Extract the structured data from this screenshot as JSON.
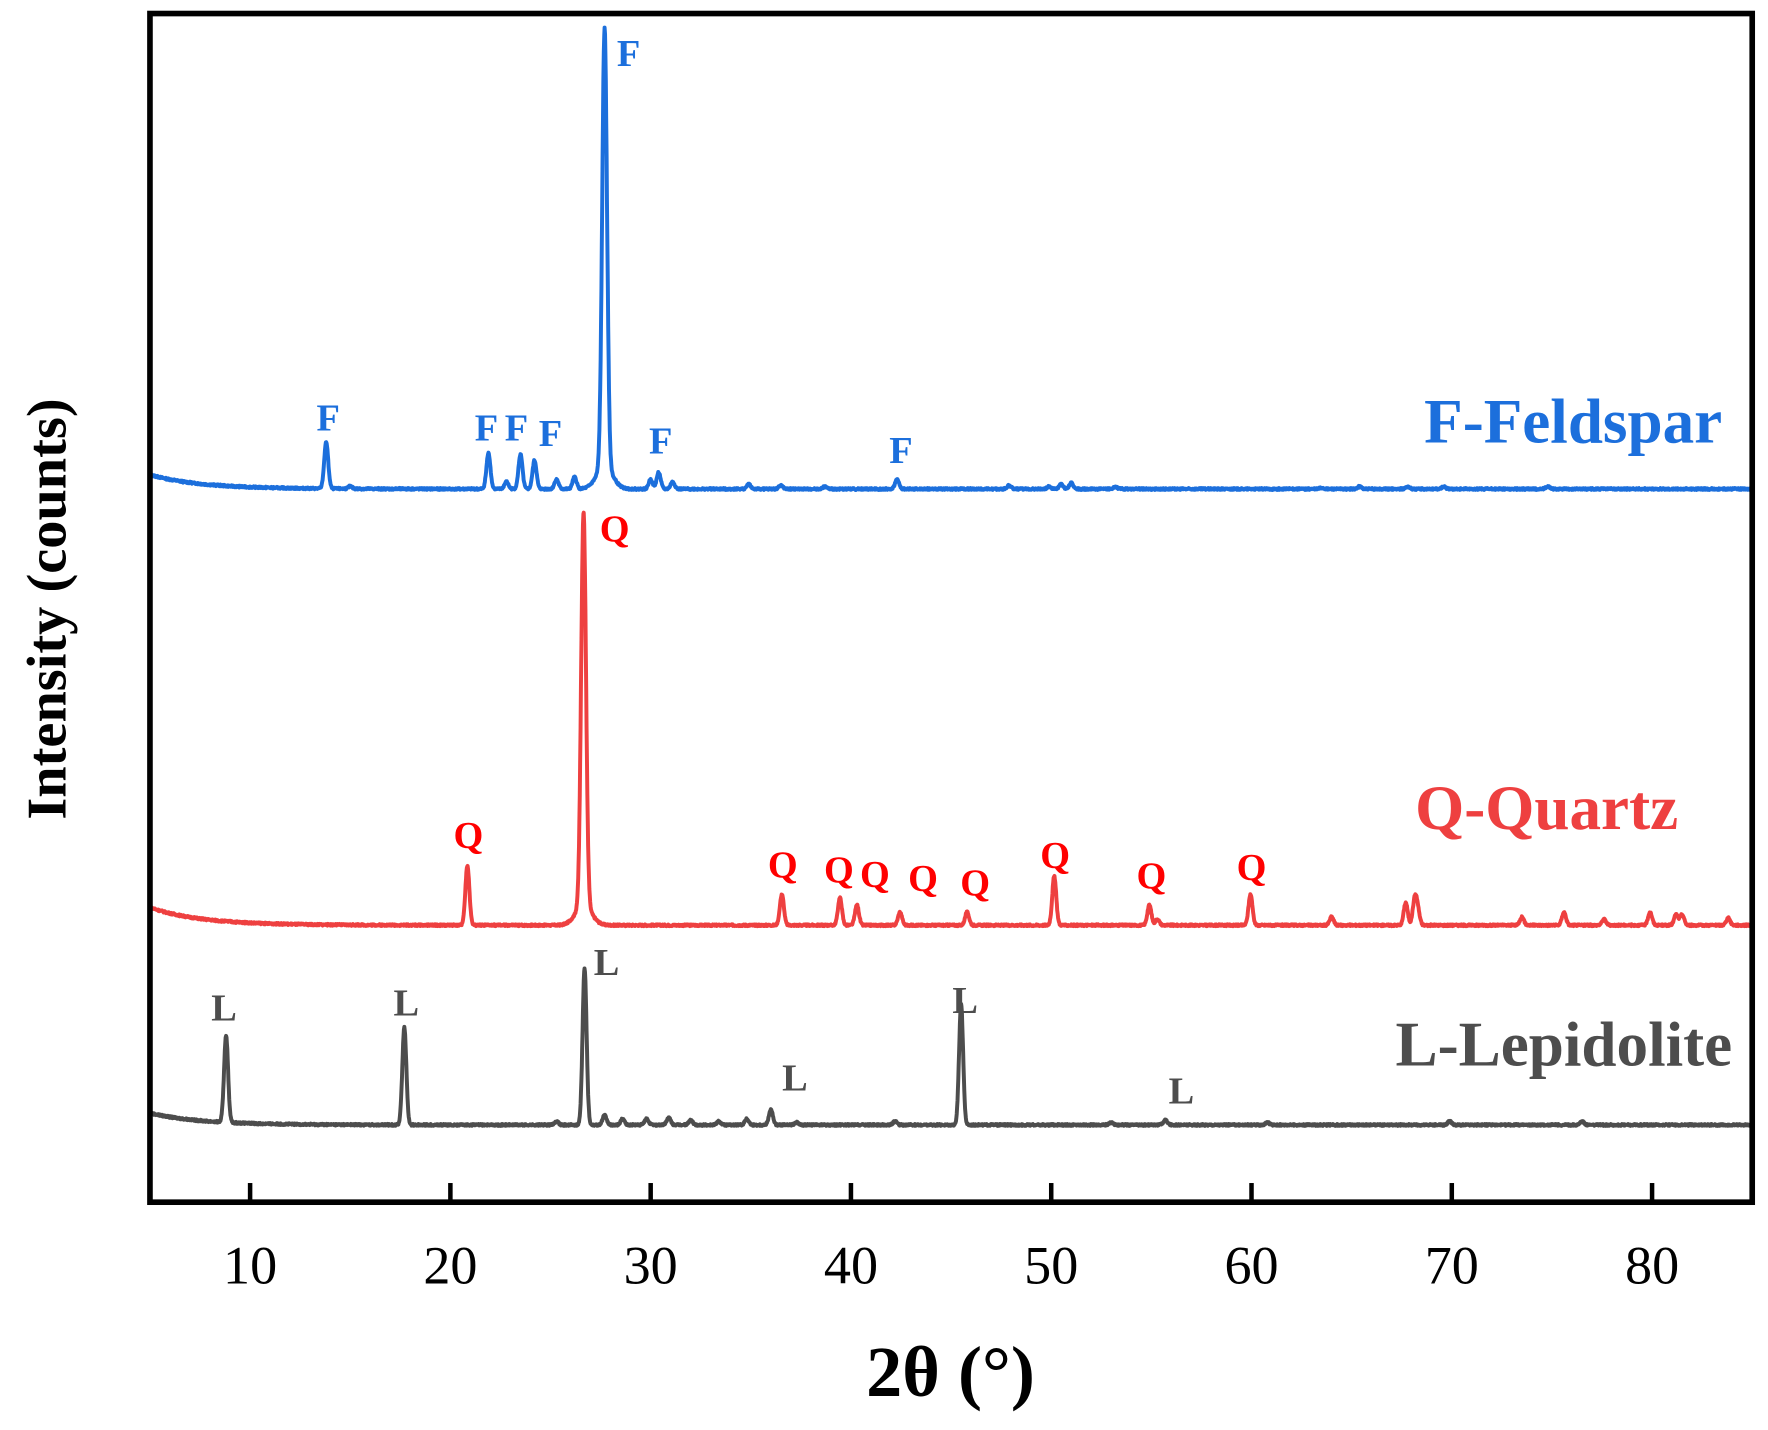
{
  "chart_data": {
    "type": "line",
    "title": "",
    "xlabel": "2θ (°)",
    "ylabel": "Intensity (counts)",
    "xlim": [
      5,
      85
    ],
    "ylim": [
      0,
      1000
    ],
    "xticks": [
      10,
      20,
      30,
      40,
      50,
      60,
      70,
      80
    ],
    "y_ticks_shown": false,
    "grid": false,
    "legend": "inline labels at right of each trace",
    "series": [
      {
        "name": "F-Feldspar",
        "color": "#1c6fdc",
        "baseline": 600,
        "start_rise": 12,
        "peaks": [
          [
            13.8,
            39
          ],
          [
            15.0,
            2
          ],
          [
            21.9,
            30
          ],
          [
            22.8,
            6
          ],
          [
            23.5,
            29
          ],
          [
            24.2,
            24
          ],
          [
            25.3,
            8
          ],
          [
            26.2,
            10
          ],
          [
            27.7,
            369
          ],
          [
            30.0,
            8
          ],
          [
            30.4,
            14
          ],
          [
            31.1,
            6
          ],
          [
            34.9,
            4
          ],
          [
            36.5,
            3
          ],
          [
            38.7,
            2
          ],
          [
            42.3,
            8
          ],
          [
            47.9,
            3
          ],
          [
            49.9,
            2
          ],
          [
            50.5,
            4
          ],
          [
            51.0,
            5
          ],
          [
            53.2,
            2
          ],
          [
            63.5,
            1
          ],
          [
            65.4,
            2
          ],
          [
            67.8,
            2
          ],
          [
            69.6,
            2
          ],
          [
            74.8,
            2
          ]
        ],
        "labels": [
          {
            "text": "F",
            "x": 28.9,
            "y": 956
          },
          {
            "text": "F",
            "x": 13.9,
            "y": 649
          },
          {
            "text": "F",
            "x": 21.8,
            "y": 641
          },
          {
            "text": "F",
            "x": 23.3,
            "y": 641
          },
          {
            "text": "F",
            "x": 25.0,
            "y": 636
          },
          {
            "text": "F",
            "x": 30.5,
            "y": 630
          },
          {
            "text": "F",
            "x": 42.5,
            "y": 622
          }
        ]
      },
      {
        "name": "Q-Quartz",
        "color": "#ee4040",
        "label_color": "#ff0000",
        "baseline": 233,
        "start_rise": 15,
        "peaks": [
          [
            20.85,
            50
          ],
          [
            26.65,
            331
          ],
          [
            36.55,
            26
          ],
          [
            39.45,
            23
          ],
          [
            40.3,
            17
          ],
          [
            42.45,
            11
          ],
          [
            45.8,
            11
          ],
          [
            50.15,
            41
          ],
          [
            54.9,
            17
          ],
          [
            55.3,
            5
          ],
          [
            59.95,
            26
          ],
          [
            64.0,
            7
          ],
          [
            67.7,
            19
          ],
          [
            68.15,
            21
          ],
          [
            68.3,
            12
          ],
          [
            73.5,
            7
          ],
          [
            75.6,
            11
          ],
          [
            77.6,
            5
          ],
          [
            79.9,
            11
          ],
          [
            81.2,
            9
          ],
          [
            81.5,
            9
          ],
          [
            83.8,
            6
          ]
        ],
        "labels": [
          {
            "text": "Q",
            "x": 28.2,
            "y": 556
          },
          {
            "text": "Q",
            "x": 20.9,
            "y": 298
          },
          {
            "text": "Q",
            "x": 36.6,
            "y": 273
          },
          {
            "text": "Q",
            "x": 39.4,
            "y": 269
          },
          {
            "text": "Q",
            "x": 41.2,
            "y": 265
          },
          {
            "text": "Q",
            "x": 43.6,
            "y": 262
          },
          {
            "text": "Q",
            "x": 46.2,
            "y": 258
          },
          {
            "text": "Q",
            "x": 50.2,
            "y": 281
          },
          {
            "text": "Q",
            "x": 55.0,
            "y": 264
          },
          {
            "text": "Q",
            "x": 60.0,
            "y": 271
          }
        ]
      },
      {
        "name": "L-Lepidolite",
        "color": "#4d4d4d",
        "baseline": 65,
        "start_rise": 10,
        "peaks": [
          [
            8.8,
            73
          ],
          [
            17.7,
            82
          ],
          [
            25.3,
            3
          ],
          [
            26.7,
            132
          ],
          [
            27.7,
            8
          ],
          [
            28.6,
            5
          ],
          [
            29.8,
            5
          ],
          [
            30.9,
            6
          ],
          [
            32.0,
            4
          ],
          [
            33.4,
            3
          ],
          [
            34.8,
            5
          ],
          [
            36.0,
            13
          ],
          [
            37.3,
            2
          ],
          [
            42.2,
            3
          ],
          [
            45.5,
            102
          ],
          [
            53.0,
            2
          ],
          [
            55.7,
            4
          ],
          [
            60.8,
            2
          ],
          [
            69.9,
            3
          ],
          [
            76.5,
            3
          ]
        ],
        "labels": [
          {
            "text": "L",
            "x": 8.7,
            "y": 153
          },
          {
            "text": "L",
            "x": 17.8,
            "y": 157
          },
          {
            "text": "L",
            "x": 27.8,
            "y": 191
          },
          {
            "text": "L",
            "x": 37.2,
            "y": 94
          },
          {
            "text": "L",
            "x": 45.7,
            "y": 159
          },
          {
            "text": "L",
            "x": 56.5,
            "y": 83
          }
        ]
      }
    ],
    "series_label_positions": [
      {
        "x": 83.5,
        "y": 639
      },
      {
        "x": 81.3,
        "y": 314
      },
      {
        "x": 84.0,
        "y": 115
      }
    ]
  }
}
